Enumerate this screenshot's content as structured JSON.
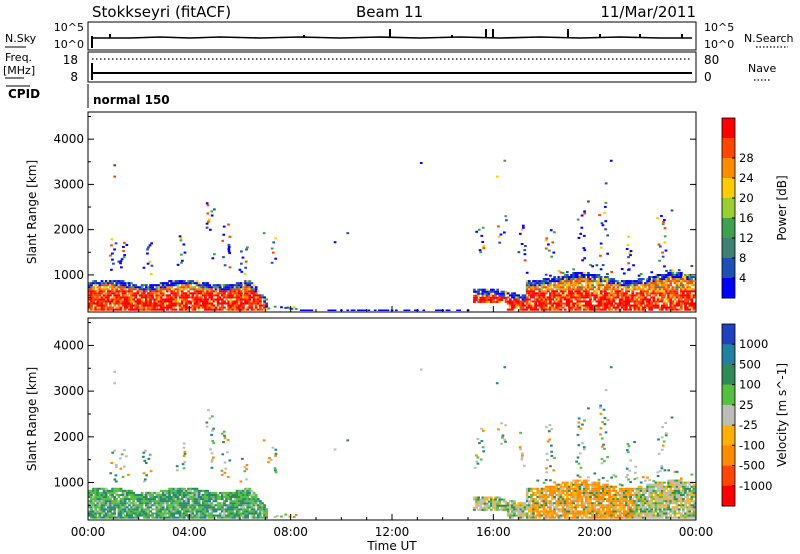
{
  "header": {
    "title": "Stokkseyri (fitACF)",
    "beam": "Beam 11",
    "date": "11/Mar/2011"
  },
  "status_panels": {
    "nsky_label": "N.Sky",
    "nsky_ticks": [
      "10^5",
      "10^0"
    ],
    "nsearch_label": "N.Search",
    "nsearch_ticks": [
      "10^5",
      "10^0"
    ],
    "freq_label": "Freq.",
    "freq_unit": "[MHz]",
    "freq_ticks": [
      "18",
      "8"
    ],
    "nave_label": "Nave",
    "nave_ticks": [
      "80",
      "0"
    ],
    "cpid_label": "CPID",
    "cpid_value": "normal 150"
  },
  "chart_data": [
    {
      "type": "heatmap",
      "name": "power",
      "ylabel": "Slant Range [km]",
      "xlabel": "Time UT",
      "x_range": [
        "00:00",
        "24:00"
      ],
      "ylim": [
        180,
        4600
      ],
      "yticks": [
        1000,
        2000,
        3000,
        4000
      ],
      "xtick_labels": [
        "00:00",
        "04:00",
        "08:00",
        "12:00",
        "16:00",
        "20:00",
        "00:00"
      ],
      "colorbar": {
        "label": "Power [dB]",
        "ticks": [
          "4",
          "8",
          "12",
          "16",
          "20",
          "24",
          "28"
        ],
        "colors": [
          "#0000ff",
          "#1f4fb4",
          "#3f8070",
          "#3fa050",
          "#9acd32",
          "#ffcc00",
          "#ff8c00",
          "#ff4500",
          "#ff0000"
        ]
      },
      "regions": [
        {
          "t": [
            0.0,
            7.0
          ],
          "range": [
            200,
            850
          ],
          "level": "high"
        },
        {
          "t": [
            15.2,
            24.0
          ],
          "range": [
            200,
            900
          ],
          "level": "high"
        },
        {
          "t": [
            15.0,
            21.0
          ],
          "range": [
            1200,
            2500
          ],
          "level": "scattered"
        }
      ]
    },
    {
      "type": "heatmap",
      "name": "velocity",
      "ylabel": "Slant Range [km]",
      "xlabel": "Time UT",
      "x_range": [
        "00:00",
        "24:00"
      ],
      "ylim": [
        180,
        4600
      ],
      "yticks": [
        1000,
        2000,
        3000,
        4000
      ],
      "xtick_labels": [
        "00:00",
        "04:00",
        "08:00",
        "12:00",
        "16:00",
        "20:00",
        "00:00"
      ],
      "colorbar": {
        "label": "Velocity [m s^-1]",
        "ticks": [
          "1000",
          "500",
          "100",
          "25",
          "-25",
          "-100",
          "-500",
          "-1000"
        ],
        "colors": [
          "#2040c0",
          "#2080a0",
          "#2e8b57",
          "#55c040",
          "#bdbdb5",
          "#ffb000",
          "#ff8c00",
          "#ff4500",
          "#ff0000"
        ]
      }
    }
  ]
}
